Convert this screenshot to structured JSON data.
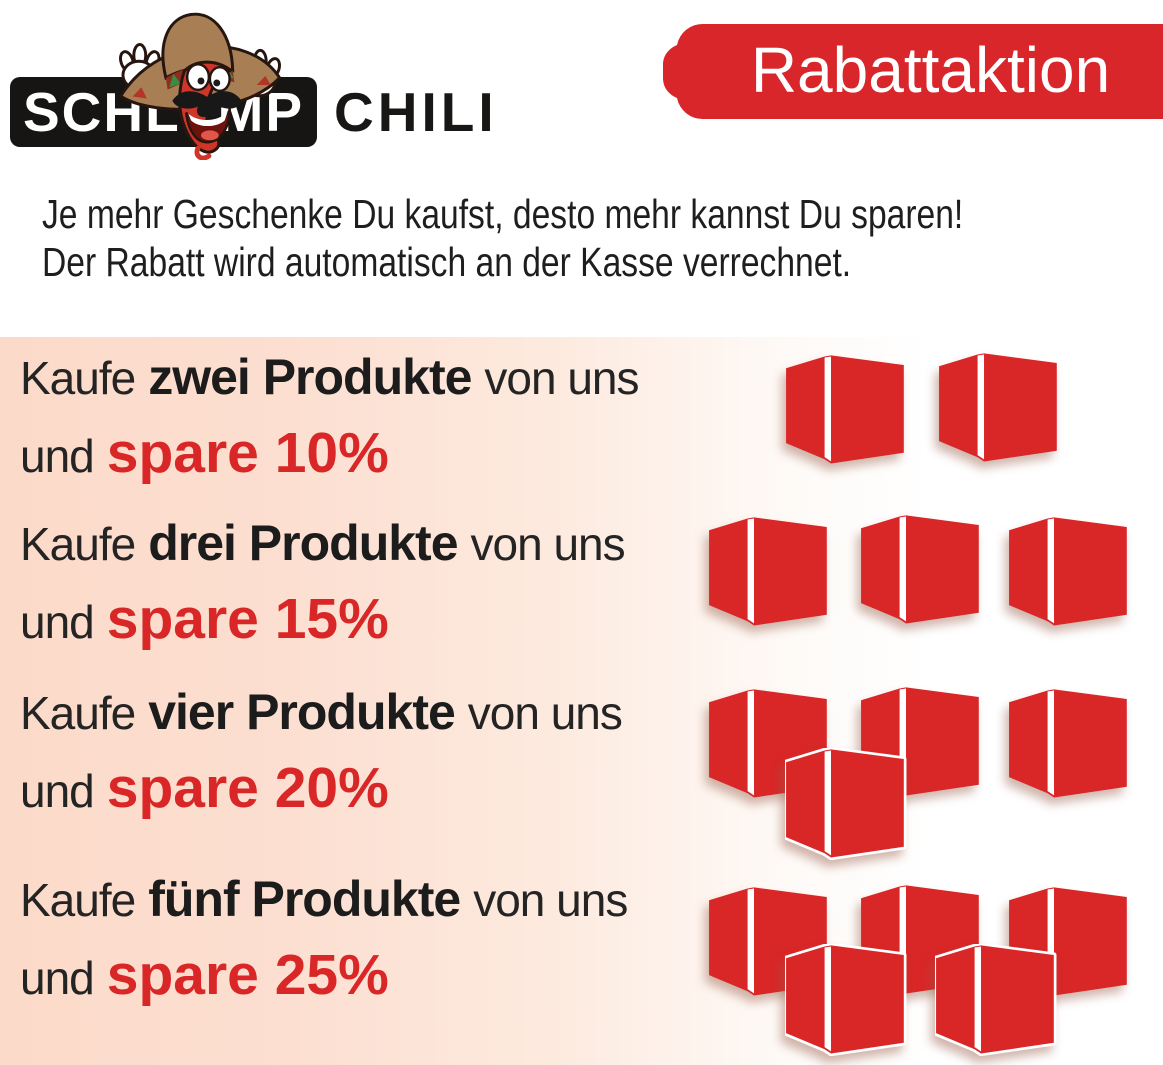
{
  "brand": {
    "bar_left": "SCHL",
    "bar_right": "MP",
    "outside": "CHILI",
    "mascot_icon": "chili-mascot-icon"
  },
  "banner": {
    "label": "Rabattaktion"
  },
  "intro": {
    "line1": "Je mehr Geschenke Du kaufst, desto mehr kannst Du sparen!",
    "line2": "Der Rabatt wird automatisch an der Kasse verrechnet."
  },
  "tiers": [
    {
      "prefix": "Kaufe",
      "quantity": "zwei Produkte",
      "suffix": "von uns",
      "conjunction": "und",
      "save": "spare 10%",
      "cubes": 2
    },
    {
      "prefix": "Kaufe",
      "quantity": "drei Produkte",
      "suffix": "von uns",
      "conjunction": "und",
      "save": "spare 15%",
      "cubes": 3
    },
    {
      "prefix": "Kaufe",
      "quantity": "vier Produkte",
      "suffix": "von uns",
      "conjunction": "und",
      "save": "spare 20%",
      "cubes": 4
    },
    {
      "prefix": "Kaufe",
      "quantity": "fünf Produkte",
      "suffix": "von uns",
      "conjunction": "und",
      "save": "spare 25%",
      "cubes": 5
    }
  ],
  "icons": {
    "mascot": "chili-mascot-icon",
    "cube": "cube-icon"
  },
  "colors": {
    "accent_red": "#d92627",
    "banner_red": "#d8262b",
    "panel_pink": "#fcdac9",
    "bar_black": "#171513",
    "text_black": "#242424"
  }
}
